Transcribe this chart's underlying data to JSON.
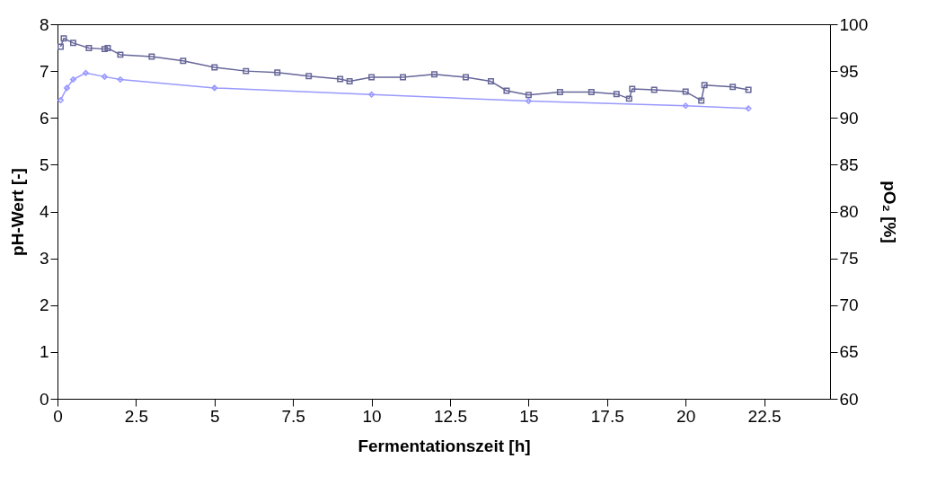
{
  "chart_data": {
    "type": "line",
    "xlabel": "Fermentationszeit [h]",
    "ylabel": "pH-Wert [-]",
    "y2label": "pO₂ [%]",
    "xlim": [
      0,
      24.6
    ],
    "xticks": [
      0,
      2.5,
      5,
      7.5,
      10,
      12.5,
      15,
      17.5,
      20,
      22.5
    ],
    "ylim": [
      0,
      8
    ],
    "yticks": [
      0,
      1,
      2,
      3,
      4,
      5,
      6,
      7,
      8
    ],
    "y2lim": [
      60,
      100
    ],
    "y2ticks": [
      60,
      65,
      70,
      75,
      80,
      85,
      90,
      95,
      100
    ],
    "grid": false,
    "series": [
      {
        "marker": "square",
        "color": "#666699",
        "x": [
          0.1,
          0.2,
          0.5,
          1,
          1.5,
          1.6,
          2,
          3,
          4,
          5,
          6,
          7,
          8,
          9,
          9.3,
          10,
          11,
          12,
          13,
          13.8,
          14.3,
          15,
          16,
          17,
          17.8,
          18.2,
          18.3,
          19,
          20,
          20.5,
          20.6,
          21.5,
          22
        ],
        "values": [
          7.52,
          7.7,
          7.6,
          7.49,
          7.47,
          7.49,
          7.35,
          7.31,
          7.22,
          7.08,
          7.0,
          6.97,
          6.89,
          6.83,
          6.78,
          6.87,
          6.87,
          6.93,
          6.87,
          6.78,
          6.58,
          6.49,
          6.55,
          6.55,
          6.51,
          6.41,
          6.62,
          6.6,
          6.56,
          6.37,
          6.7,
          6.66,
          6.6
        ]
      },
      {
        "marker": "diamond",
        "color": "#9999ff",
        "axis": "y2",
        "x": [
          0.1,
          0.3,
          0.5,
          0.9,
          1.5,
          2,
          5,
          10,
          15,
          20,
          22
        ],
        "values": [
          91.9,
          93.2,
          94.1,
          94.8,
          94.4,
          94.1,
          93.2,
          92.5,
          91.8,
          91.3,
          91.0
        ]
      }
    ]
  }
}
